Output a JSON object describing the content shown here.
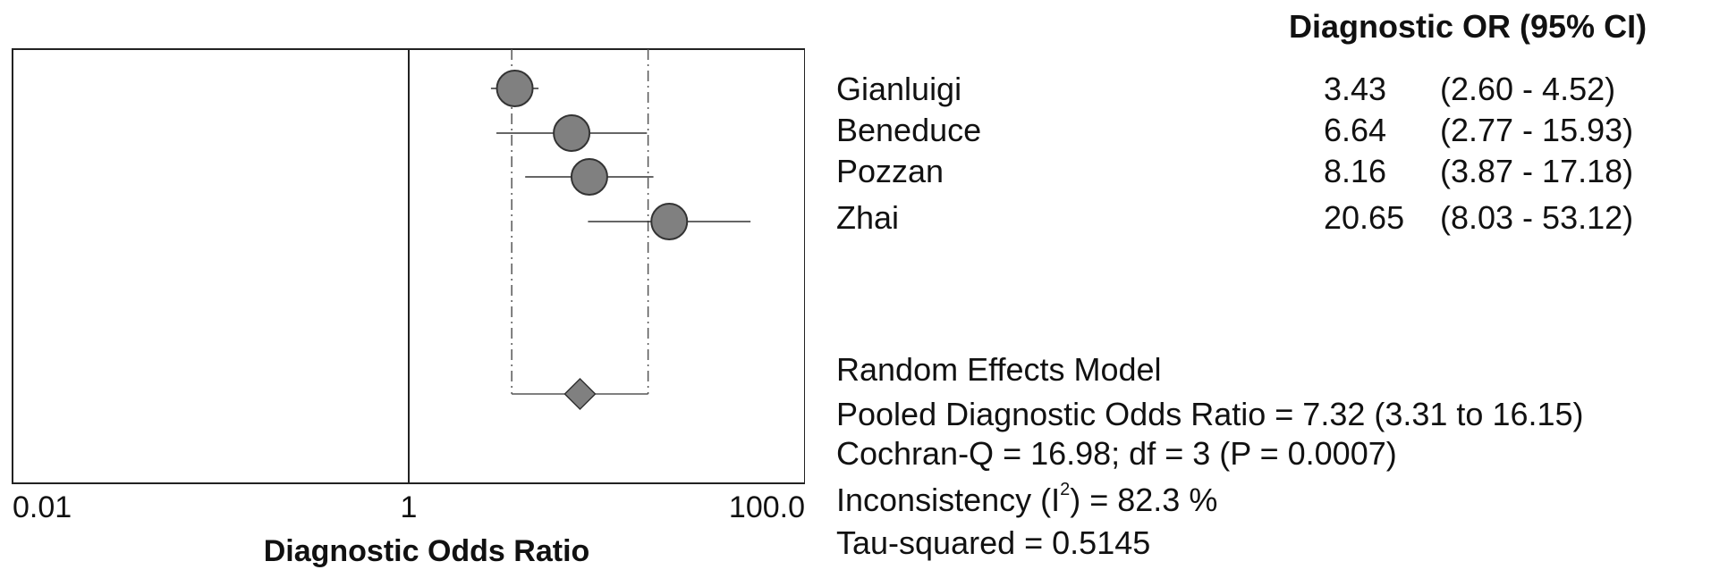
{
  "chart_data": {
    "type": "forest",
    "xscale": "log",
    "xlim": [
      0.01,
      100.0
    ],
    "xticks": [
      "0.01",
      "1",
      "100.0"
    ],
    "xlabel": "Diagnostic Odds Ratio",
    "reference_line": 1,
    "column_header": "Diagnostic OR (95% CI)",
    "studies": [
      {
        "name": "Gianluigi",
        "or": 3.43,
        "ci_low": 2.6,
        "ci_high": 4.52,
        "or_text": "3.43",
        "ci_text": "(2.60 - 4.52)"
      },
      {
        "name": "Beneduce",
        "or": 6.64,
        "ci_low": 2.77,
        "ci_high": 15.93,
        "or_text": "6.64",
        "ci_text": "(2.77 - 15.93)"
      },
      {
        "name": "Pozzan",
        "or": 8.16,
        "ci_low": 3.87,
        "ci_high": 17.18,
        "or_text": "8.16",
        "ci_text": "(3.87 - 17.18)"
      },
      {
        "name": "Zhai",
        "or": 20.65,
        "ci_low": 8.03,
        "ci_high": 53.12,
        "or_text": "20.65",
        "ci_text": "(8.03 - 53.12)"
      }
    ],
    "pooled": {
      "or": 7.32,
      "ci_low": 3.31,
      "ci_high": 16.15
    },
    "summary": {
      "model": "Random Effects Model",
      "pooled_text": "Pooled Diagnostic Odds Ratio = 7.32 (3.31 to 16.15)",
      "cochran_text": "Cochran-Q = 16.98; df =  3 (P = 0.0007)",
      "inconsistency_prefix": "Inconsistency (I",
      "inconsistency_sup": "2",
      "inconsistency_suffix": ") = 82.3 %",
      "tau_text": "Tau-squared = 0.5145"
    },
    "colors": {
      "marker": "#808080",
      "line": "#333333",
      "frame": "#222222"
    }
  }
}
